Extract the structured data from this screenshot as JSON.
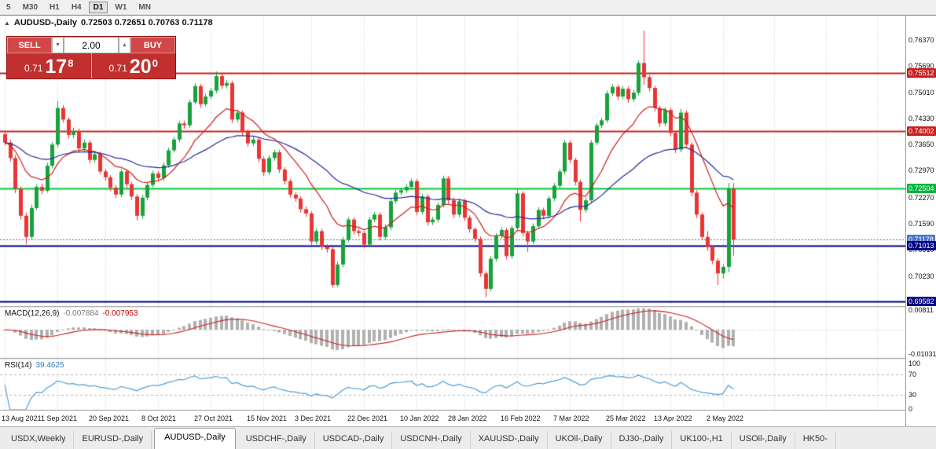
{
  "toolbar": {
    "timeframes": [
      "5",
      "M30",
      "H1",
      "H4",
      "D1",
      "W1",
      "MN"
    ],
    "active": "D1"
  },
  "chart": {
    "collapse_icon": "▲",
    "symbol": "AUDUSD-,Daily",
    "ohlc": "0.72503 0.72651 0.70763 0.71178"
  },
  "trade_panel": {
    "sell_label": "SELL",
    "buy_label": "BUY",
    "volume": "2.00",
    "spin_down": "▼",
    "spin_up": "▲",
    "bid": {
      "prefix": "0.71",
      "pips": "17",
      "pipette": "8"
    },
    "ask": {
      "prefix": "0.71",
      "pips": "20",
      "pipette": "0"
    }
  },
  "price_axis": {
    "ticks": [
      "0.76370",
      "0.75690",
      "0.75010",
      "0.74330",
      "0.73650",
      "0.72970",
      "0.72270",
      "0.71590",
      "0.70910",
      "0.70230"
    ],
    "badges": [
      {
        "label": "0.75512",
        "value": 0.75512,
        "color": "#c82020"
      },
      {
        "label": "0.74002",
        "value": 0.74002,
        "color": "#c82020"
      },
      {
        "label": "0.72504",
        "value": 0.72504,
        "color": "#00b43c"
      },
      {
        "label": "0.71178",
        "value": 0.71178,
        "color": "#4a72c8"
      },
      {
        "label": "0.71013",
        "value": 0.71013,
        "color": "#000080"
      },
      {
        "label": "0.69582",
        "value": 0.69582,
        "color": "#000080"
      }
    ]
  },
  "macd": {
    "name": "MACD(12,26,9)",
    "value_main": "-0.007884",
    "value_signal": "-0.007953",
    "periods": [
      12,
      26,
      9
    ],
    "range": [
      -0.0118,
      0.0092
    ],
    "axis": [
      {
        "label": "0.00811",
        "value": 0.00811
      },
      {
        "label": "-0.01031",
        "value": -0.01031
      }
    ]
  },
  "rsi": {
    "name": "RSI(14)",
    "value": "39.4625",
    "period": 14,
    "levels": [
      70,
      30
    ],
    "axis": [
      {
        "label": "100",
        "value": 100
      },
      {
        "label": "70",
        "value": 70
      },
      {
        "label": "30",
        "value": 30
      },
      {
        "label": "0",
        "value": 0
      }
    ]
  },
  "date_axis": {
    "labels": [
      "13 Aug 2021",
      "1 Sep 2021",
      "20 Sep 2021",
      "8 Oct 2021",
      "27 Oct 2021",
      "15 Nov 2021",
      "3 Dec 2021",
      "22 Dec 2021",
      "10 Jan 2022",
      "28 Jan 2022",
      "16 Feb 2022",
      "7 Mar 2022",
      "25 Mar 2022",
      "13 Apr 2022",
      "2 May 2022"
    ],
    "tick_indices": [
      0,
      10,
      19,
      29,
      39,
      49,
      58,
      68,
      78,
      87,
      97,
      107,
      117,
      126,
      136
    ]
  },
  "tabs": {
    "active": "AUDUSD-,Daily",
    "items": [
      "USDX,Weekly",
      "EURUSD-,Daily",
      "AUDUSD-,Daily",
      "USDCHF-,Daily",
      "USDCAD-,Daily",
      "USDCNH-,Daily",
      "XAUUSD-,Daily",
      "UKOil-,Daily",
      "DJ30-,Daily",
      "UK100-,H1",
      "USOil-,Daily",
      "HK50-"
    ]
  },
  "chart_data": {
    "type": "candlestick",
    "symbol": "AUDUSD-",
    "timeframe": "Daily",
    "price_range": [
      0.6945,
      0.77
    ],
    "ma_fast_period": 13,
    "ma_slow_period": 40,
    "current_price": 0.71178,
    "colors": {
      "bull": "#17a33b",
      "bear": "#e93535",
      "ma_fast": "#cc2020",
      "ma_slow": "#2a2a9e",
      "macd_hist": "#b0b0b0",
      "macd_signal": "#cc2020",
      "rsi_line": "#4f9fd8",
      "grid": "#d0d0d0",
      "current_line": "#4a72c8"
    },
    "hlines": [
      {
        "price": 0.75512,
        "color": "#c82020",
        "width": 2
      },
      {
        "price": 0.74002,
        "color": "#c82020",
        "width": 2
      },
      {
        "price": 0.72504,
        "color": "#00cc33",
        "width": 2
      },
      {
        "price": 0.71013,
        "color": "#000080",
        "width": 2
      },
      {
        "price": 0.69582,
        "color": "#000080",
        "width": 2
      }
    ],
    "candles": [
      [
        0.7392,
        0.7401,
        0.7362,
        0.737
      ],
      [
        0.737,
        0.7377,
        0.7321,
        0.733
      ],
      [
        0.733,
        0.7338,
        0.7239,
        0.725
      ],
      [
        0.725,
        0.7256,
        0.717,
        0.718
      ],
      [
        0.718,
        0.7188,
        0.7106,
        0.7125
      ],
      [
        0.7125,
        0.7209,
        0.7118,
        0.72
      ],
      [
        0.72,
        0.7262,
        0.7194,
        0.7255
      ],
      [
        0.7255,
        0.7264,
        0.7236,
        0.7245
      ],
      [
        0.7245,
        0.7318,
        0.724,
        0.731
      ],
      [
        0.731,
        0.7372,
        0.7303,
        0.7365
      ],
      [
        0.7365,
        0.7478,
        0.7358,
        0.746
      ],
      [
        0.746,
        0.7468,
        0.7422,
        0.743
      ],
      [
        0.743,
        0.7436,
        0.7381,
        0.739
      ],
      [
        0.739,
        0.7409,
        0.7382,
        0.74
      ],
      [
        0.74,
        0.7407,
        0.7346,
        0.7355
      ],
      [
        0.7355,
        0.7378,
        0.7348,
        0.737
      ],
      [
        0.737,
        0.7376,
        0.7316,
        0.7325
      ],
      [
        0.7325,
        0.7348,
        0.7318,
        0.734
      ],
      [
        0.734,
        0.7346,
        0.7287,
        0.7295
      ],
      [
        0.7295,
        0.7302,
        0.7271,
        0.728
      ],
      [
        0.728,
        0.7286,
        0.7245,
        0.7253
      ],
      [
        0.7253,
        0.726,
        0.7226,
        0.7235
      ],
      [
        0.7235,
        0.7301,
        0.7228,
        0.7295
      ],
      [
        0.7295,
        0.73,
        0.7253,
        0.7262
      ],
      [
        0.7262,
        0.7268,
        0.7221,
        0.723
      ],
      [
        0.723,
        0.7236,
        0.7168,
        0.718
      ],
      [
        0.718,
        0.7234,
        0.7172,
        0.7227
      ],
      [
        0.7227,
        0.7267,
        0.722,
        0.726
      ],
      [
        0.726,
        0.7297,
        0.7254,
        0.729
      ],
      [
        0.729,
        0.7296,
        0.7269,
        0.7278
      ],
      [
        0.7278,
        0.7318,
        0.7271,
        0.7311
      ],
      [
        0.7311,
        0.7357,
        0.7305,
        0.735
      ],
      [
        0.735,
        0.7385,
        0.7344,
        0.7378
      ],
      [
        0.7378,
        0.7427,
        0.7371,
        0.742
      ],
      [
        0.742,
        0.7427,
        0.7406,
        0.7415
      ],
      [
        0.7415,
        0.7482,
        0.7408,
        0.7475
      ],
      [
        0.7475,
        0.7524,
        0.7469,
        0.7517
      ],
      [
        0.7517,
        0.7523,
        0.7461,
        0.747
      ],
      [
        0.747,
        0.7497,
        0.7464,
        0.749
      ],
      [
        0.749,
        0.7512,
        0.7483,
        0.7505
      ],
      [
        0.7505,
        0.7555,
        0.7498,
        0.7543
      ],
      [
        0.7543,
        0.7549,
        0.7509,
        0.7518
      ],
      [
        0.7518,
        0.7532,
        0.7511,
        0.7525
      ],
      [
        0.7525,
        0.7531,
        0.7421,
        0.743
      ],
      [
        0.743,
        0.7455,
        0.7423,
        0.7448
      ],
      [
        0.7448,
        0.7454,
        0.7389,
        0.7398
      ],
      [
        0.7398,
        0.7404,
        0.7359,
        0.7368
      ],
      [
        0.7368,
        0.7385,
        0.7361,
        0.7378
      ],
      [
        0.7378,
        0.7384,
        0.7319,
        0.7328
      ],
      [
        0.7328,
        0.7334,
        0.7284,
        0.7293
      ],
      [
        0.7293,
        0.7337,
        0.7286,
        0.733
      ],
      [
        0.733,
        0.7352,
        0.7323,
        0.7345
      ],
      [
        0.7345,
        0.7351,
        0.7291,
        0.73
      ],
      [
        0.73,
        0.7306,
        0.7261,
        0.727
      ],
      [
        0.727,
        0.7276,
        0.7227,
        0.7235
      ],
      [
        0.7235,
        0.7241,
        0.7216,
        0.7225
      ],
      [
        0.7225,
        0.7231,
        0.7188,
        0.7197
      ],
      [
        0.7197,
        0.7204,
        0.7177,
        0.7186
      ],
      [
        0.7186,
        0.7192,
        0.7104,
        0.7113
      ],
      [
        0.7113,
        0.7147,
        0.7106,
        0.714
      ],
      [
        0.714,
        0.7146,
        0.7091,
        0.71
      ],
      [
        0.71,
        0.7106,
        0.7084,
        0.7093
      ],
      [
        0.7093,
        0.7099,
        0.6993,
        0.7
      ],
      [
        0.7,
        0.706,
        0.6994,
        0.7053
      ],
      [
        0.7053,
        0.7125,
        0.7046,
        0.7118
      ],
      [
        0.7118,
        0.7177,
        0.7111,
        0.717
      ],
      [
        0.717,
        0.7176,
        0.7131,
        0.714
      ],
      [
        0.714,
        0.7147,
        0.7126,
        0.7135
      ],
      [
        0.7135,
        0.7141,
        0.7096,
        0.7105
      ],
      [
        0.7105,
        0.7177,
        0.7098,
        0.717
      ],
      [
        0.717,
        0.719,
        0.7163,
        0.7183
      ],
      [
        0.7183,
        0.7189,
        0.7116,
        0.7125
      ],
      [
        0.7125,
        0.7157,
        0.7118,
        0.715
      ],
      [
        0.715,
        0.7225,
        0.7143,
        0.7218
      ],
      [
        0.7218,
        0.7247,
        0.7211,
        0.724
      ],
      [
        0.724,
        0.7253,
        0.7233,
        0.7246
      ],
      [
        0.7246,
        0.7262,
        0.7239,
        0.7255
      ],
      [
        0.7255,
        0.7277,
        0.7248,
        0.727
      ],
      [
        0.727,
        0.7276,
        0.7181,
        0.719
      ],
      [
        0.719,
        0.7237,
        0.7183,
        0.723
      ],
      [
        0.723,
        0.7236,
        0.7154,
        0.7163
      ],
      [
        0.7163,
        0.7177,
        0.7156,
        0.717
      ],
      [
        0.717,
        0.7215,
        0.7163,
        0.7208
      ],
      [
        0.7208,
        0.7284,
        0.7201,
        0.7277
      ],
      [
        0.7277,
        0.7283,
        0.7211,
        0.722
      ],
      [
        0.722,
        0.7226,
        0.7174,
        0.7183
      ],
      [
        0.7183,
        0.7225,
        0.7176,
        0.7218
      ],
      [
        0.7218,
        0.7224,
        0.7166,
        0.7175
      ],
      [
        0.7175,
        0.7181,
        0.7136,
        0.7145
      ],
      [
        0.7145,
        0.7151,
        0.7111,
        0.712
      ],
      [
        0.712,
        0.7126,
        0.7021,
        0.703
      ],
      [
        0.703,
        0.7036,
        0.6968,
        0.699
      ],
      [
        0.699,
        0.7075,
        0.6983,
        0.7068
      ],
      [
        0.7068,
        0.7135,
        0.7061,
        0.7128
      ],
      [
        0.7128,
        0.715,
        0.7121,
        0.7143
      ],
      [
        0.7143,
        0.7149,
        0.7066,
        0.7075
      ],
      [
        0.7075,
        0.7155,
        0.7068,
        0.7148
      ],
      [
        0.7148,
        0.7249,
        0.7141,
        0.7238
      ],
      [
        0.7238,
        0.7244,
        0.7126,
        0.7135
      ],
      [
        0.7135,
        0.7141,
        0.7086,
        0.7113
      ],
      [
        0.7113,
        0.716,
        0.7106,
        0.7153
      ],
      [
        0.7153,
        0.7202,
        0.7146,
        0.7195
      ],
      [
        0.7195,
        0.7201,
        0.7171,
        0.718
      ],
      [
        0.718,
        0.7232,
        0.7173,
        0.7225
      ],
      [
        0.7225,
        0.7265,
        0.7218,
        0.7258
      ],
      [
        0.7258,
        0.7302,
        0.7251,
        0.7295
      ],
      [
        0.7295,
        0.7377,
        0.7288,
        0.737
      ],
      [
        0.737,
        0.7376,
        0.7316,
        0.7325
      ],
      [
        0.7325,
        0.7331,
        0.7259,
        0.7268
      ],
      [
        0.7268,
        0.7274,
        0.7165,
        0.7195
      ],
      [
        0.7195,
        0.7227,
        0.7188,
        0.722
      ],
      [
        0.722,
        0.7377,
        0.7213,
        0.737
      ],
      [
        0.737,
        0.7422,
        0.7363,
        0.7415
      ],
      [
        0.7415,
        0.7435,
        0.7408,
        0.7428
      ],
      [
        0.7428,
        0.7505,
        0.7421,
        0.7498
      ],
      [
        0.7498,
        0.7522,
        0.7491,
        0.7515
      ],
      [
        0.7515,
        0.7521,
        0.7481,
        0.749
      ],
      [
        0.749,
        0.7517,
        0.7483,
        0.751
      ],
      [
        0.751,
        0.7516,
        0.7474,
        0.7483
      ],
      [
        0.7483,
        0.7507,
        0.7476,
        0.75
      ],
      [
        0.75,
        0.7584,
        0.7493,
        0.7577
      ],
      [
        0.7577,
        0.7661,
        0.752,
        0.754
      ],
      [
        0.754,
        0.7546,
        0.7503,
        0.7512
      ],
      [
        0.7512,
        0.7518,
        0.7451,
        0.746
      ],
      [
        0.746,
        0.7466,
        0.7411,
        0.742
      ],
      [
        0.742,
        0.7462,
        0.7413,
        0.7455
      ],
      [
        0.7455,
        0.7461,
        0.7386,
        0.7395
      ],
      [
        0.7395,
        0.7401,
        0.7343,
        0.7352
      ],
      [
        0.7352,
        0.7458,
        0.7345,
        0.7448
      ],
      [
        0.7448,
        0.7454,
        0.7356,
        0.7365
      ],
      [
        0.7365,
        0.7371,
        0.7231,
        0.724
      ],
      [
        0.724,
        0.7246,
        0.7174,
        0.7183
      ],
      [
        0.7183,
        0.7189,
        0.7116,
        0.7125
      ],
      [
        0.7125,
        0.714,
        0.7089,
        0.7098
      ],
      [
        0.7098,
        0.7104,
        0.7054,
        0.7063
      ],
      [
        0.7063,
        0.7069,
        0.7,
        0.703
      ],
      [
        0.703,
        0.7054,
        0.7017,
        0.7047
      ],
      [
        0.7047,
        0.7265,
        0.7033,
        0.725
      ],
      [
        0.72503,
        0.72651,
        0.70763,
        0.71178
      ]
    ]
  }
}
